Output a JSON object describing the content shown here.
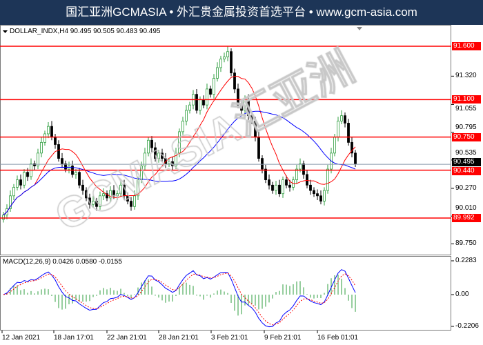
{
  "header": {
    "title": "国汇亚洲GCMASIA • 外汇贵金属投资首选平台 • www.gcm-asia.com"
  },
  "watermark": "GCMASIA汇亚洲",
  "chart_data": [
    {
      "type": "candlestick",
      "title": "DOLLAR_INDX,H4  90.495 90.505 90.483 90.495",
      "ylim": [
        89.65,
        91.75
      ],
      "y_ticks": [
        "91.320",
        "91.055",
        "90.795",
        "90.535",
        "90.270",
        "90.010",
        "89.750"
      ],
      "current_price": "90.495",
      "levels": [
        {
          "label": "91.600",
          "value": 91.6
        },
        {
          "label": "91.100",
          "value": 91.1
        },
        {
          "label": "90.750",
          "value": 90.75
        },
        {
          "label": "90.440",
          "value": 90.44
        },
        {
          "label": "89.992",
          "value": 89.992
        }
      ],
      "level_color": "#ff0000",
      "bull_color": "#2e9e3e",
      "bear_color": "#000000",
      "ma": [
        {
          "period": 10,
          "color": "#ff0000"
        },
        {
          "period": 30,
          "color": "#0000ff"
        }
      ],
      "closes": [
        90.02,
        90.08,
        90.2,
        90.28,
        90.35,
        90.3,
        90.42,
        90.38,
        90.5,
        90.48,
        90.6,
        90.7,
        90.78,
        90.85,
        90.75,
        90.68,
        90.55,
        90.5,
        90.45,
        90.48,
        90.4,
        90.42,
        90.3,
        90.25,
        90.18,
        90.12,
        90.15,
        90.1,
        90.2,
        90.22,
        90.18,
        90.25,
        90.2,
        90.22,
        90.3,
        90.2,
        90.15,
        90.1,
        90.2,
        90.35,
        90.48,
        90.6,
        90.72,
        90.65,
        90.55,
        90.6,
        90.55,
        90.5,
        90.52,
        90.48,
        90.6,
        90.8,
        90.9,
        91.0,
        91.05,
        91.15,
        91.0,
        91.1,
        91.05,
        91.2,
        91.15,
        91.3,
        91.4,
        91.48,
        91.5,
        91.55,
        91.35,
        91.2,
        91.05,
        91.0,
        91.1,
        90.95,
        90.9,
        90.75,
        90.55,
        90.45,
        90.35,
        90.3,
        90.25,
        90.3,
        90.22,
        90.35,
        90.3,
        90.28,
        90.35,
        90.45,
        90.5,
        90.4,
        90.3,
        90.25,
        90.22,
        90.2,
        90.15,
        90.25,
        90.45,
        90.6,
        90.75,
        90.9,
        90.95,
        90.88,
        90.7,
        90.6,
        90.5
      ],
      "x_ticks": [
        "12 Jan 2021",
        "18 Jan 17:01",
        "22 Jan 21:01",
        "28 Jan 21:01",
        "3 Feb 21:01",
        "9 Feb 21:01",
        "16 Feb 01:01"
      ]
    },
    {
      "type": "line",
      "title": "MACD(12,26,9) 0.0426 0.0580 -0.0155",
      "ylim": [
        -0.2206,
        0.2283
      ],
      "y_ticks": [
        "0.2283",
        "0.00",
        "-0.2206"
      ],
      "series": [
        {
          "color": "#0000ff"
        },
        {
          "color": "#ff0000"
        }
      ],
      "hist_color": "#2e9e3e"
    }
  ]
}
